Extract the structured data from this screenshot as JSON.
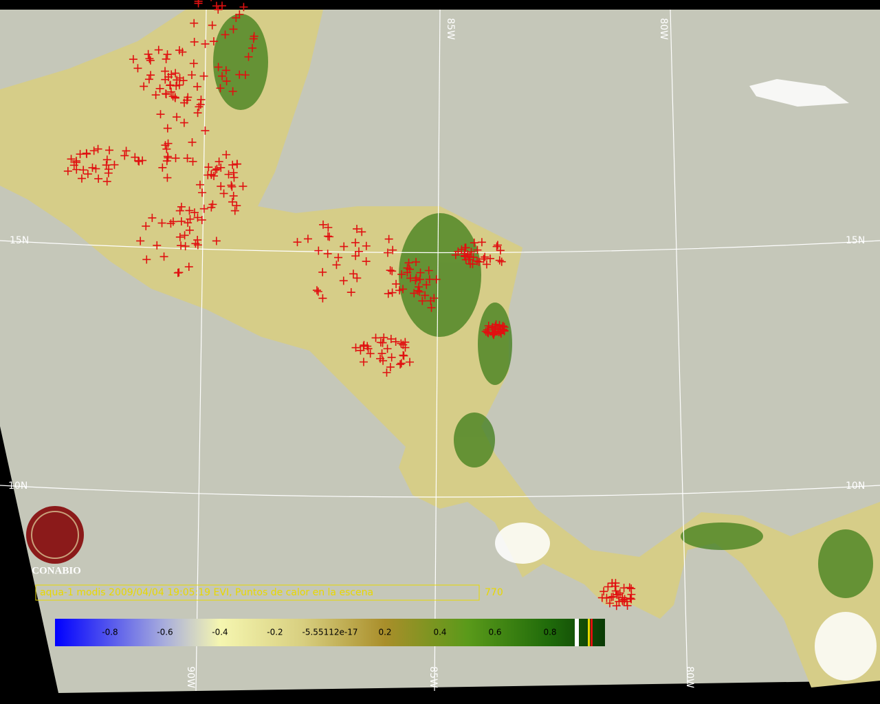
{
  "grid_labels": {
    "top": [
      "85W",
      "80W"
    ],
    "left": [
      "15N",
      "10N"
    ],
    "right": [
      "15N",
      "10N"
    ],
    "bottom": [
      "90W",
      "85W",
      "80W"
    ]
  },
  "logo": {
    "name": "CONABIO"
  },
  "caption": {
    "text": "aqua-1 modis 2009/04/04 19:05:19 EVI, Puntos de calor en la escena",
    "count": 770
  },
  "colorbar": {
    "labels": [
      "-0.8",
      "-0.6",
      "-0.4",
      "-0.2",
      "-5.55112e-17",
      "0.2",
      "0.4",
      "0.6",
      "0.8"
    ]
  }
}
